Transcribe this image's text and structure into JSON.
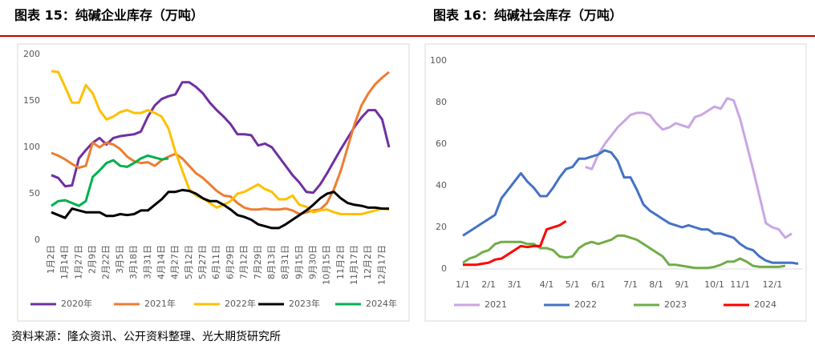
{
  "chart_data": [
    {
      "type": "line",
      "title": "图表 15：纯碱企业库存（万吨）",
      "categories": [
        "1月2日",
        null,
        "1月14日",
        null,
        "1月27日",
        null,
        "2月9日",
        null,
        "2月22日",
        null,
        "3月5日",
        null,
        "3月18日",
        null,
        "3月31日",
        null,
        "4月14日",
        null,
        "4月27日",
        null,
        "5月12日",
        null,
        "5月27日",
        null,
        "6月11日",
        null,
        "6月29日",
        null,
        "7月12日",
        null,
        "7月29日",
        null,
        "8月13日",
        null,
        "8月31日",
        null,
        "9月15日",
        null,
        "9月30日",
        null,
        "10月15日",
        null,
        "11月2日",
        null,
        "11月17日",
        null,
        "12月2日",
        null,
        "12月17日",
        null
      ],
      "ylim": [
        0,
        200
      ],
      "yticks": [
        0,
        50,
        100,
        150,
        200
      ],
      "series": [
        {
          "name": "2020年",
          "color": "#7030a0",
          "values": [
            70,
            67,
            58,
            59,
            88,
            97,
            105,
            110,
            103,
            110,
            112,
            113,
            114,
            117,
            133,
            145,
            152,
            155,
            157,
            170,
            170,
            165,
            158,
            148,
            140,
            133,
            125,
            114,
            114,
            113,
            102,
            104,
            100,
            90,
            80,
            70,
            62,
            52,
            51,
            60,
            72,
            85,
            98,
            110,
            122,
            132,
            140,
            140,
            130,
            100
          ]
        },
        {
          "name": "2021年",
          "color": "#ed7d31",
          "values": [
            94,
            91,
            87,
            82,
            78,
            80,
            105,
            100,
            105,
            103,
            98,
            90,
            85,
            83,
            84,
            80,
            86,
            90,
            93,
            88,
            80,
            72,
            67,
            60,
            53,
            48,
            47,
            40,
            35,
            33,
            33,
            34,
            33,
            33,
            34,
            32,
            28,
            30,
            32,
            33,
            40,
            55,
            75,
            100,
            125,
            145,
            158,
            168,
            175,
            181
          ]
        },
        {
          "name": "2022年",
          "color": "#ffc000",
          "values": [
            182,
            181,
            165,
            148,
            148,
            167,
            158,
            140,
            130,
            133,
            138,
            140,
            137,
            137,
            140,
            137,
            133,
            120,
            95,
            75,
            55,
            48,
            45,
            40,
            35,
            38,
            42,
            50,
            52,
            56,
            60,
            55,
            52,
            44,
            44,
            48,
            38,
            36,
            30,
            32,
            33,
            30,
            28,
            28,
            28,
            28,
            30,
            32,
            34,
            33
          ]
        },
        {
          "name": "2023年",
          "color": "#000000",
          "values": [
            30,
            27,
            24,
            34,
            32,
            30,
            30,
            30,
            26,
            26,
            28,
            27,
            28,
            32,
            32,
            38,
            44,
            52,
            52,
            54,
            53,
            50,
            45,
            42,
            42,
            38,
            33,
            27,
            25,
            22,
            17,
            15,
            13,
            13,
            17,
            22,
            27,
            32,
            38,
            45,
            50,
            52,
            45,
            40,
            38,
            37,
            35,
            35,
            34,
            34
          ]
        },
        {
          "name": "2024年",
          "color": "#00b050",
          "values": [
            37,
            42,
            43,
            40,
            37,
            42,
            68,
            75,
            83,
            86,
            80,
            79,
            83,
            88,
            91,
            89,
            87,
            88,
            null,
            null,
            null,
            null,
            null,
            null,
            null,
            null,
            null,
            null,
            null,
            null,
            null,
            null,
            null,
            null,
            null,
            null,
            null,
            null,
            null,
            null,
            null,
            null,
            null,
            null,
            null,
            null,
            null,
            null,
            null,
            null
          ]
        }
      ]
    },
    {
      "type": "line",
      "title": "图表 16：纯碱社会库存（万吨）",
      "categories": [
        "1/1",
        null,
        null,
        null,
        "2/1",
        null,
        null,
        null,
        "3/1",
        null,
        null,
        null,
        null,
        "4/1",
        null,
        null,
        null,
        "5/1",
        null,
        null,
        null,
        "6/1",
        null,
        null,
        null,
        null,
        "7/1",
        null,
        null,
        null,
        "8/1",
        null,
        null,
        null,
        "9/1",
        null,
        null,
        null,
        null,
        "10/1",
        null,
        null,
        null,
        "11/1",
        null,
        null,
        null,
        null,
        "12/1",
        null,
        null,
        null,
        null
      ],
      "ylim": [
        0,
        100
      ],
      "yticks": [
        0,
        20,
        40,
        60,
        80,
        100
      ],
      "series": [
        {
          "name": "2021",
          "color": "#c9a6e4",
          "values": [
            null,
            null,
            null,
            null,
            null,
            null,
            null,
            null,
            null,
            null,
            null,
            null,
            null,
            null,
            null,
            null,
            null,
            null,
            null,
            49,
            48,
            55,
            60,
            64,
            68,
            71,
            74,
            75,
            75,
            74,
            70,
            67,
            68,
            70,
            69,
            68,
            73,
            74,
            76,
            78,
            77,
            82,
            81,
            72,
            60,
            48,
            35,
            22,
            20,
            19,
            15,
            17,
            null
          ]
        },
        {
          "name": "2022",
          "color": "#4472c4",
          "values": [
            16,
            18,
            20,
            22,
            24,
            26,
            34,
            38,
            42,
            46,
            42,
            39,
            35,
            35,
            39,
            44,
            48,
            49,
            53,
            53,
            54,
            55,
            57,
            56,
            52,
            44,
            44,
            38,
            31,
            28,
            26,
            24,
            22,
            21,
            20,
            21,
            20,
            19,
            19,
            17,
            17,
            16,
            15,
            12,
            10,
            9,
            6,
            4,
            3,
            3,
            3,
            3,
            2.5
          ]
        },
        {
          "name": "2023",
          "color": "#70ad47",
          "values": [
            3,
            5,
            6,
            8,
            9,
            12,
            13,
            13,
            13,
            13,
            12,
            12,
            10,
            10,
            9,
            6,
            5.5,
            6,
            10,
            12,
            13,
            12,
            13,
            14,
            16,
            16,
            15,
            14,
            12,
            10,
            8,
            6,
            2,
            2,
            1.5,
            1,
            0.5,
            0.5,
            0.5,
            1,
            2,
            3.5,
            3.5,
            5,
            3.5,
            1.5,
            1,
            1,
            1,
            1,
            1.5,
            null,
            null
          ]
        },
        {
          "name": "2024",
          "color": "#ff0000",
          "values": [
            2,
            2,
            2,
            2.5,
            3,
            4.5,
            5,
            7,
            9,
            11,
            10.5,
            11,
            11,
            19,
            20,
            21,
            23,
            null,
            null,
            null,
            null,
            null,
            null,
            null,
            null,
            null,
            null,
            null,
            null,
            null,
            null,
            null,
            null,
            null,
            null,
            null,
            null,
            null,
            null,
            null,
            null,
            null,
            null,
            null,
            null,
            null,
            null,
            null,
            null,
            null,
            null,
            null,
            null
          ]
        }
      ]
    }
  ],
  "source": "资料来源：隆众资讯、公开资料整理、光大期货研究所"
}
